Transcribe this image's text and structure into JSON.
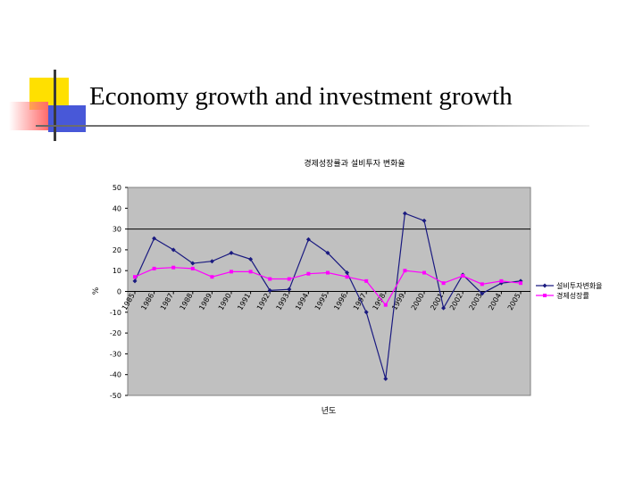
{
  "slide": {
    "title": "Economy growth and investment growth",
    "colors": {
      "deco_yellow": "#FFE000",
      "deco_red": "#FF6A6A",
      "deco_blue": "#4858D8",
      "rule": "#888888"
    }
  },
  "chart_data": {
    "type": "line",
    "title": "경제성장률과 설비투자 변화율",
    "xlabel": "년도",
    "ylabel": "%",
    "ylim": [
      -50,
      50
    ],
    "yticks": [
      50,
      40,
      30,
      20,
      10,
      0,
      -10,
      -20,
      -30,
      -40,
      -50
    ],
    "grid": "y=30 reference line only",
    "plot_background": "#C0C0C0",
    "legend_position": "right",
    "categories": [
      "1985",
      "1986",
      "1987",
      "1988",
      "1989",
      "1990",
      "1991",
      "1992",
      "1993",
      "1994",
      "1995",
      "1996",
      "1997",
      "1998",
      "1999",
      "2000",
      "2001",
      "2002",
      "2003",
      "2004",
      "2005"
    ],
    "xtick_labels": [
      "1985",
      "1986",
      "1987",
      "1988",
      "1989",
      "1990",
      "1991",
      "1992",
      "1993",
      "1994",
      "1995",
      "1996",
      "1997",
      "1998",
      "1999",
      "2000",
      "2001",
      "2002",
      "2003",
      "2004",
      "2005"
    ],
    "series": [
      {
        "name": "설비투자변화율",
        "color": "#1A1A80",
        "marker": "diamond",
        "values": [
          5,
          25.5,
          20,
          13.5,
          14.5,
          18.5,
          15.5,
          0.5,
          1,
          25,
          18.5,
          9,
          -10,
          -42,
          37.5,
          34,
          -8,
          8,
          -1,
          4,
          5
        ]
      },
      {
        "name": "경제성장률",
        "color": "#FF00FF",
        "marker": "square",
        "values": [
          7,
          11,
          11.5,
          11,
          7,
          9.5,
          9.5,
          6,
          6,
          8.5,
          9,
          7,
          5,
          -6.5,
          10,
          9,
          4,
          7.5,
          3.5,
          5,
          4
        ]
      }
    ]
  }
}
